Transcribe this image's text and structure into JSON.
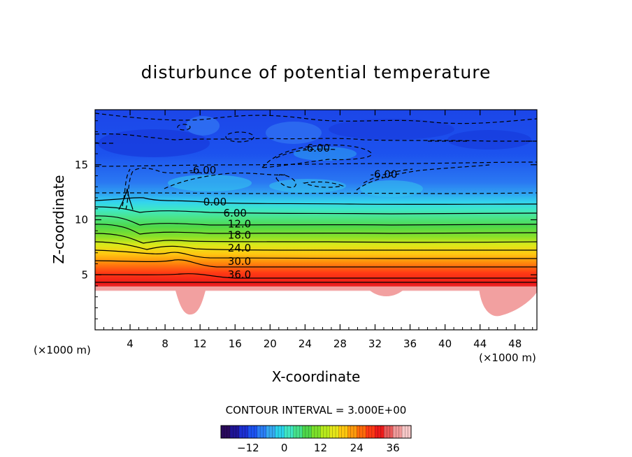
{
  "chart_data": {
    "type": "heatmap",
    "title": "disturbunce of potential temperature",
    "xlabel": "X-coordinate",
    "ylabel": "Z-coordinate",
    "x_unit_label": "(×1000 m)",
    "y_unit_label": "(×1000 m)",
    "xlim": [
      0,
      50.5
    ],
    "ylim": [
      0,
      20
    ],
    "x_ticks": [
      "4",
      "8",
      "12",
      "16",
      "20",
      "24",
      "28",
      "32",
      "36",
      "40",
      "44",
      "48"
    ],
    "y_ticks": [
      "5",
      "10",
      "15"
    ],
    "contour_interval_text": "CONTOUR INTERVAL = 3.000E+00",
    "contour_labels": [
      {
        "text": "-6.00",
        "x": 25.3,
        "y": 16.2
      },
      {
        "text": "-6.00",
        "x": 12.3,
        "y": 14.2
      },
      {
        "text": "-6.00",
        "x": 33.0,
        "y": 13.8
      },
      {
        "text": "0.00",
        "x": 13.7,
        "y": 11.3
      },
      {
        "text": "6.00",
        "x": 16.0,
        "y": 10.3
      },
      {
        "text": "12.0",
        "x": 16.5,
        "y": 9.3
      },
      {
        "text": "18.0",
        "x": 16.5,
        "y": 8.3
      },
      {
        "text": "24.0",
        "x": 16.5,
        "y": 7.1
      },
      {
        "text": "30.0",
        "x": 16.5,
        "y": 5.9
      },
      {
        "text": "36.0",
        "x": 16.5,
        "y": 4.7
      }
    ],
    "colorbar": {
      "ticks": [
        "-12",
        "0",
        "12",
        "24",
        "36"
      ],
      "range": [
        -21,
        42
      ],
      "colors": [
        "#2a0a5c",
        "#1f1596",
        "#1c2fd2",
        "#1c52f0",
        "#2a7df5",
        "#35a8f0",
        "#2ad2ea",
        "#3fe6c2",
        "#45e08a",
        "#4fd64a",
        "#7be02a",
        "#b8ea1c",
        "#e6e61a",
        "#ffc810",
        "#ff9a0c",
        "#ff6a0a",
        "#ff3a14",
        "#ee1a1a",
        "#e85a5a",
        "#f09a9a",
        "#f7c8c8"
      ]
    }
  }
}
